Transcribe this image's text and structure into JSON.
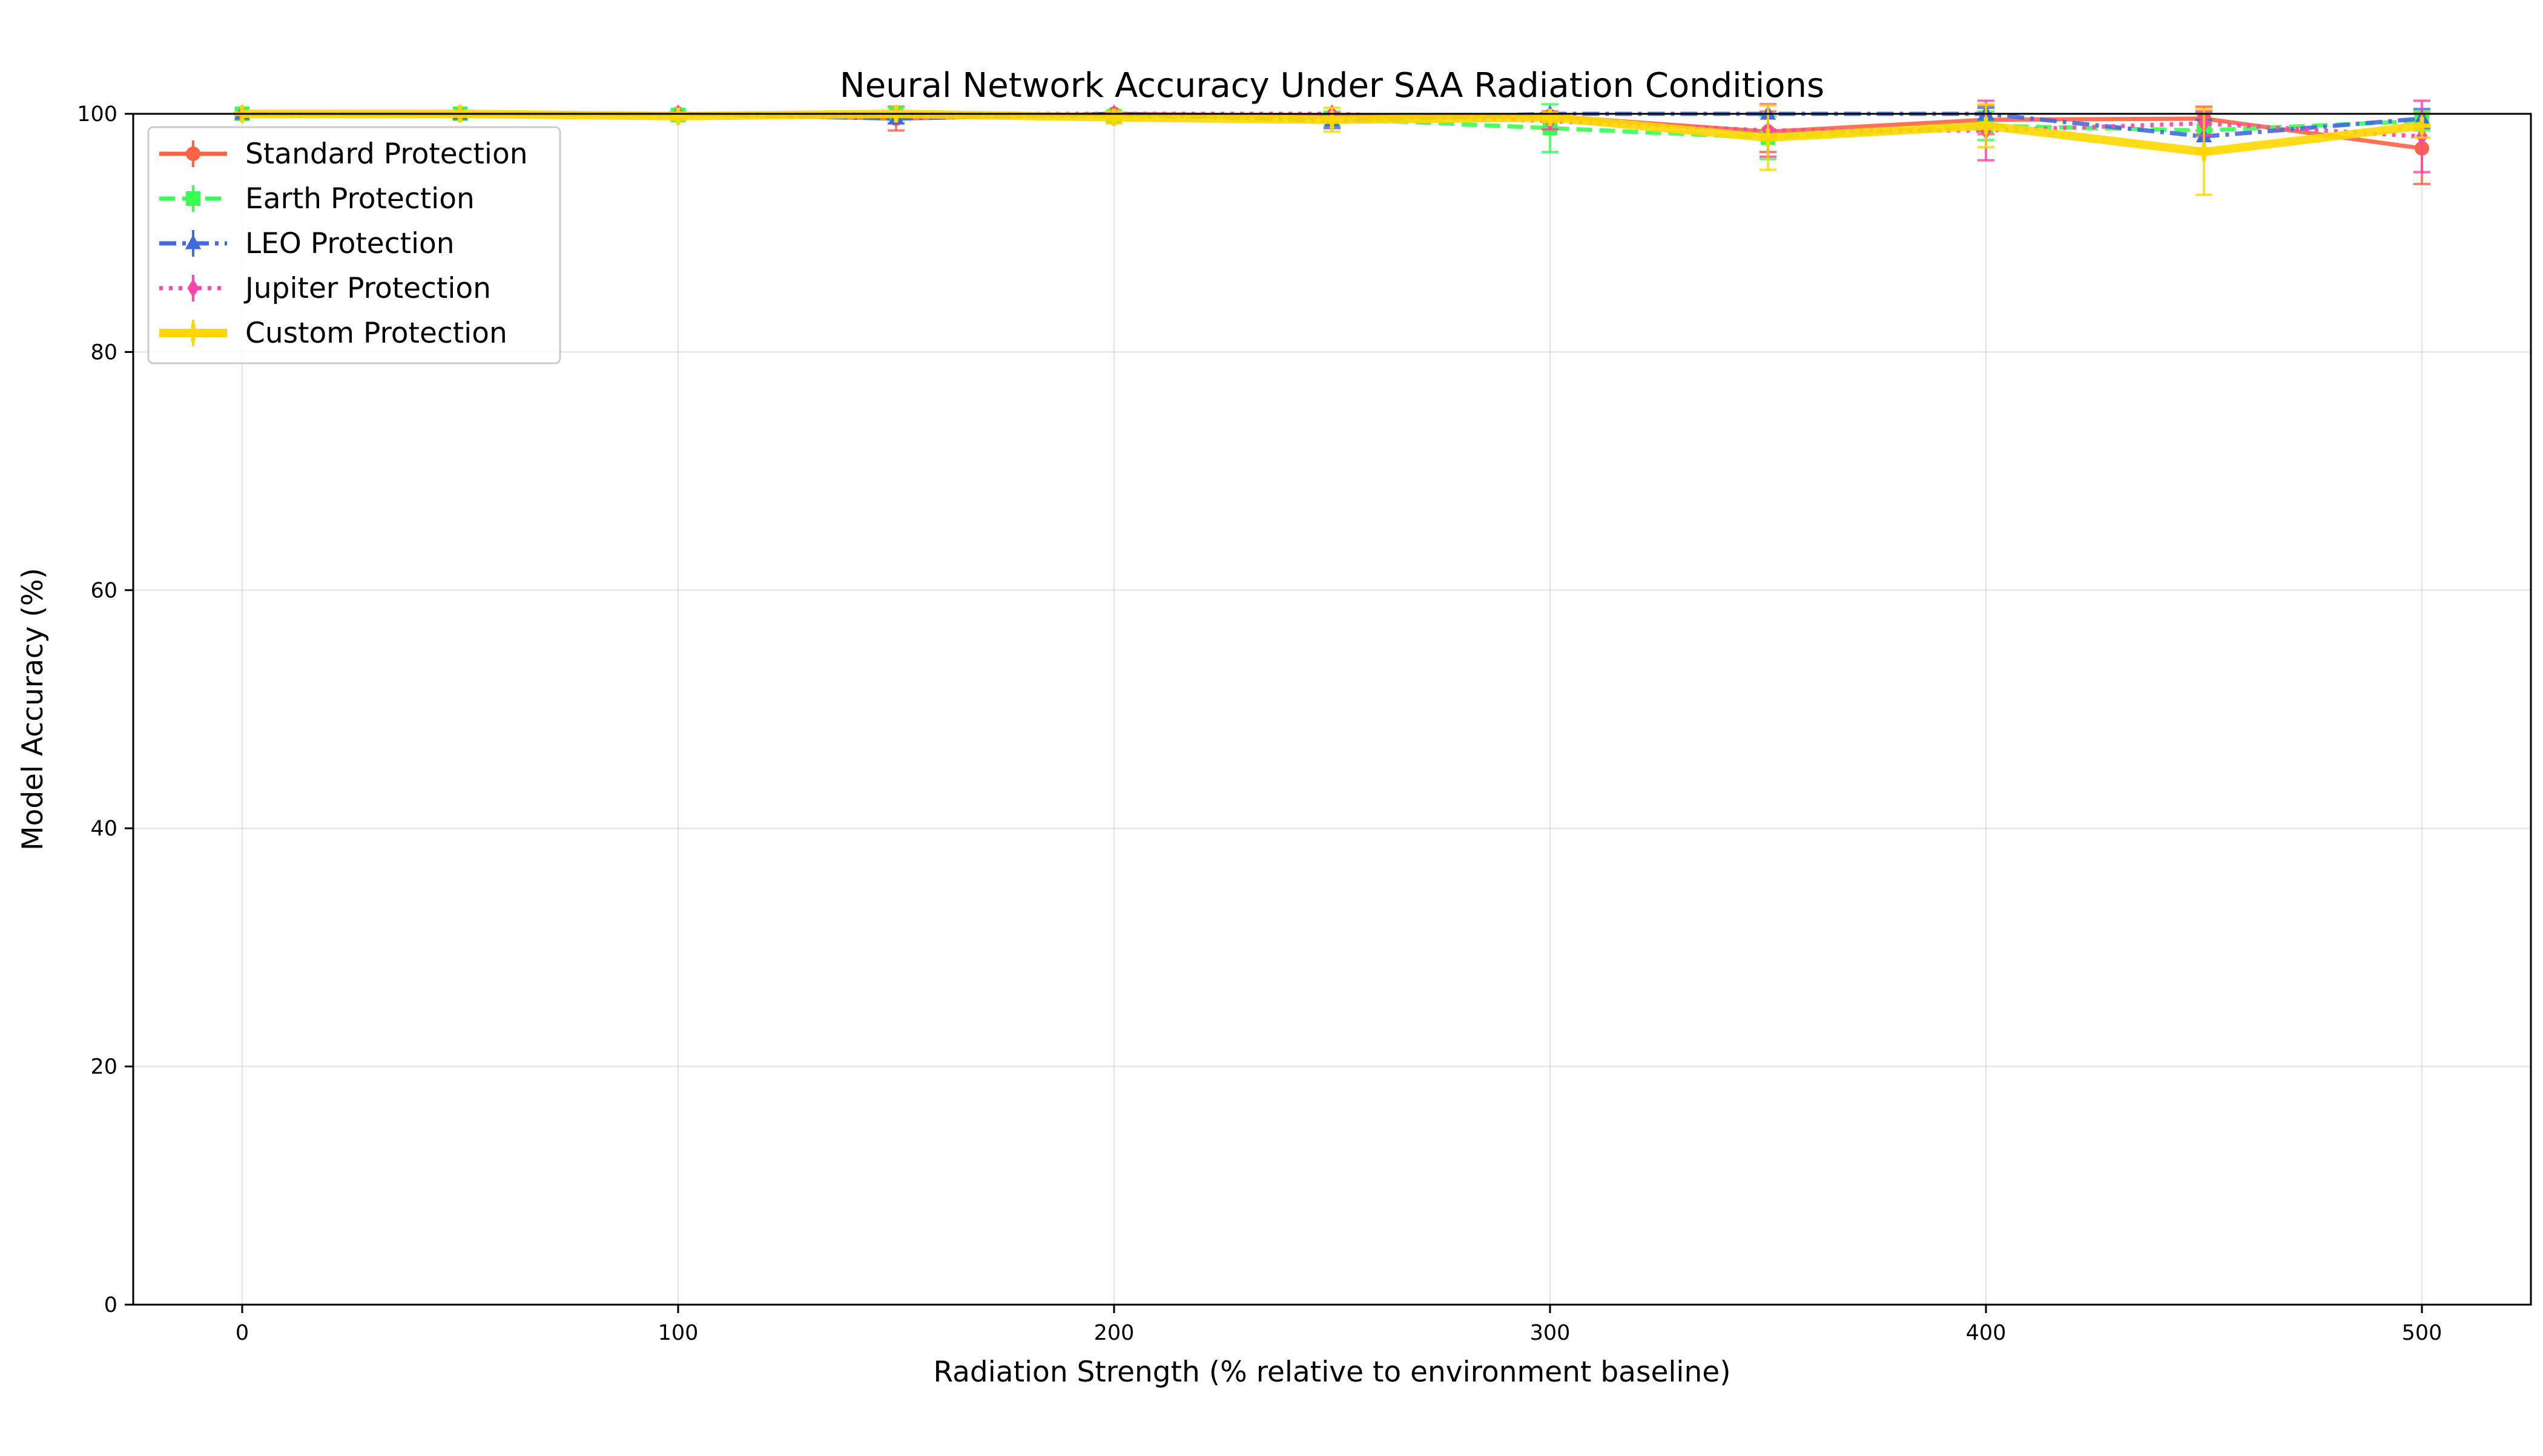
{
  "chart_data": {
    "type": "line",
    "title": "Neural Network Accuracy Under SAA Radiation Conditions",
    "xlabel": "Radiation Strength (% relative to environment baseline)",
    "ylabel": "Model Accuracy (%)",
    "xlim": [
      -25,
      525
    ],
    "ylim": [
      0,
      100
    ],
    "xticks": [
      0,
      100,
      200,
      300,
      400,
      500
    ],
    "yticks": [
      0,
      20,
      40,
      60,
      80,
      100
    ],
    "grid": true,
    "legend_position": "top-left",
    "x": [
      0,
      50,
      100,
      150,
      200,
      250,
      300,
      350,
      400,
      450,
      500
    ],
    "series": [
      {
        "name": "Standard Protection",
        "color": "#ff6347",
        "linestyle": "solid",
        "marker": "circle",
        "values": [
          100,
          100,
          100,
          99.6,
          100,
          99.8,
          99.8,
          98.5,
          99.5,
          99.6,
          97.1
        ],
        "errors": [
          0,
          0,
          0,
          1.0,
          0,
          0.3,
          0.4,
          1.7,
          1.2,
          1.0,
          3.0
        ]
      },
      {
        "name": "Earth Protection",
        "color": "#39ff55",
        "linestyle": "dashed",
        "marker": "square",
        "values": [
          100,
          100,
          99.9,
          100,
          99.8,
          99.6,
          98.8,
          98.0,
          99.0,
          98.6,
          99.4
        ],
        "errors": [
          0,
          0,
          0.3,
          0,
          0.4,
          0.6,
          2.0,
          1.8,
          1.2,
          1.5,
          0.8
        ]
      },
      {
        "name": "LEO Protection",
        "color": "#4169e1",
        "linestyle": "dashdot",
        "marker": "triangle",
        "values": [
          100,
          100,
          100,
          99.6,
          100,
          99.4,
          100,
          100,
          100,
          98.1,
          99.6
        ],
        "errors": [
          0,
          0,
          0,
          0.4,
          0,
          0.6,
          0,
          0,
          0.5,
          1.4,
          0.8
        ]
      },
      {
        "name": "Jupiter Protection",
        "color": "#ff44aa",
        "linestyle": "dotted",
        "marker": "diamond",
        "values": [
          100,
          100,
          100,
          100,
          100,
          100,
          99.4,
          98.6,
          98.6,
          99.2,
          98.1
        ],
        "errors": [
          0,
          0,
          0,
          0,
          0,
          0,
          0.7,
          2.2,
          2.5,
          1.0,
          3.0
        ]
      },
      {
        "name": "Custom Protection",
        "color": "#ffd700",
        "linestyle": "solid",
        "marker": "plus",
        "values": [
          100,
          100,
          99.8,
          100,
          99.7,
          99.5,
          99.7,
          98.0,
          99.0,
          96.8,
          99.0
        ],
        "errors": [
          0,
          0,
          0.3,
          0,
          0.5,
          1.0,
          0.4,
          2.7,
          1.8,
          3.6,
          1.0
        ]
      }
    ]
  }
}
